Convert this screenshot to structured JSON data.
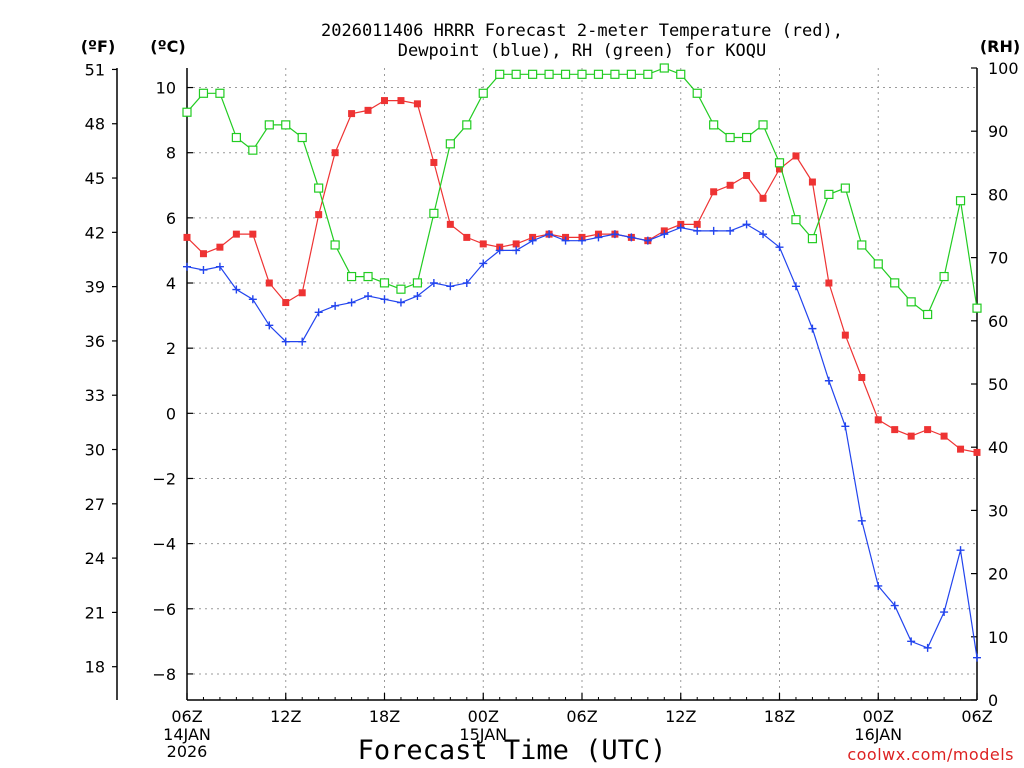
{
  "chart_data": {
    "type": "line",
    "title": "2026011406 HRRR Forecast 2-meter Temperature (red),",
    "subtitle": "Dewpoint (blue), RH (green) for KOQU",
    "xlabel": "Forecast Time (UTC)",
    "credit": "coolwx.com/models",
    "unit_labels": {
      "fahrenheit": "(ºF)",
      "celsius": "(ºC)",
      "rh": "(RH)"
    },
    "x_hours": {
      "start": 0,
      "end": 48,
      "step": 1
    },
    "x_ticks": [
      {
        "hour": 0,
        "label": "06Z",
        "date": "14JAN",
        "year": "2026"
      },
      {
        "hour": 6,
        "label": "12Z"
      },
      {
        "hour": 12,
        "label": "18Z"
      },
      {
        "hour": 18,
        "label": "00Z",
        "date": "15JAN"
      },
      {
        "hour": 24,
        "label": "06Z"
      },
      {
        "hour": 30,
        "label": "12Z"
      },
      {
        "hour": 36,
        "label": "18Z"
      },
      {
        "hour": 42,
        "label": "00Z",
        "date": "16JAN"
      },
      {
        "hour": 48,
        "label": "06Z"
      }
    ],
    "y_celsius": {
      "min": -8.8,
      "max": 10.6,
      "ticks": [
        10,
        8,
        6,
        4,
        2,
        0,
        -2,
        -4,
        -6,
        -8
      ],
      "tick_labels": [
        "10",
        "8",
        "6",
        "4",
        "2",
        "0",
        "−2",
        "−4",
        "−6",
        "−8"
      ]
    },
    "y_fahrenheit": {
      "ticks": [
        51,
        48,
        45,
        42,
        39,
        36,
        33,
        30,
        27,
        24,
        21,
        18
      ]
    },
    "y_rh": {
      "min": 0,
      "max": 100,
      "ticks": [
        100,
        90,
        80,
        70,
        60,
        50,
        40,
        30,
        20,
        10,
        0
      ]
    },
    "series": [
      {
        "name": "Temperature",
        "unit": "C",
        "color": "#ee3333",
        "marker": "filled-square",
        "values": [
          5.4,
          4.9,
          5.1,
          5.5,
          5.5,
          4.0,
          3.4,
          3.7,
          6.1,
          8.0,
          9.2,
          9.3,
          9.6,
          9.6,
          9.5,
          7.7,
          5.8,
          5.4,
          5.2,
          5.1,
          5.2,
          5.4,
          5.5,
          5.4,
          5.4,
          5.5,
          5.5,
          5.4,
          5.3,
          5.6,
          5.8,
          5.8,
          6.8,
          7.0,
          7.3,
          6.6,
          7.5,
          7.9,
          7.1,
          4.0,
          2.4,
          1.1,
          -0.2,
          -0.5,
          -0.7,
          -0.5,
          -0.7,
          -1.1,
          -1.2
        ]
      },
      {
        "name": "Dewpoint",
        "unit": "C",
        "color": "#2244ee",
        "marker": "plus",
        "values": [
          4.5,
          4.4,
          4.5,
          3.8,
          3.5,
          2.7,
          2.2,
          2.2,
          3.1,
          3.3,
          3.4,
          3.6,
          3.5,
          3.4,
          3.6,
          4.0,
          3.9,
          4.0,
          4.6,
          5.0,
          5.0,
          5.3,
          5.5,
          5.3,
          5.3,
          5.4,
          5.5,
          5.4,
          5.3,
          5.5,
          5.7,
          5.6,
          5.6,
          5.6,
          5.8,
          5.5,
          5.1,
          3.9,
          2.6,
          1.0,
          -0.4,
          -3.3,
          -5.3,
          -5.9,
          -7.0,
          -7.2,
          -6.1,
          -4.2,
          -7.5
        ]
      },
      {
        "name": "RH",
        "unit": "%",
        "color": "#22cc22",
        "marker": "open-square",
        "values": [
          93,
          96,
          96,
          89,
          87,
          91,
          91,
          89,
          81,
          72,
          67,
          67,
          66,
          65,
          66,
          77,
          88,
          91,
          96,
          99,
          99,
          99,
          99,
          99,
          99,
          99,
          99,
          99,
          99,
          100,
          99,
          96,
          91,
          89,
          89,
          91,
          85,
          76,
          73,
          80,
          81,
          72,
          69,
          66,
          63,
          61,
          67,
          79,
          62
        ]
      }
    ]
  }
}
